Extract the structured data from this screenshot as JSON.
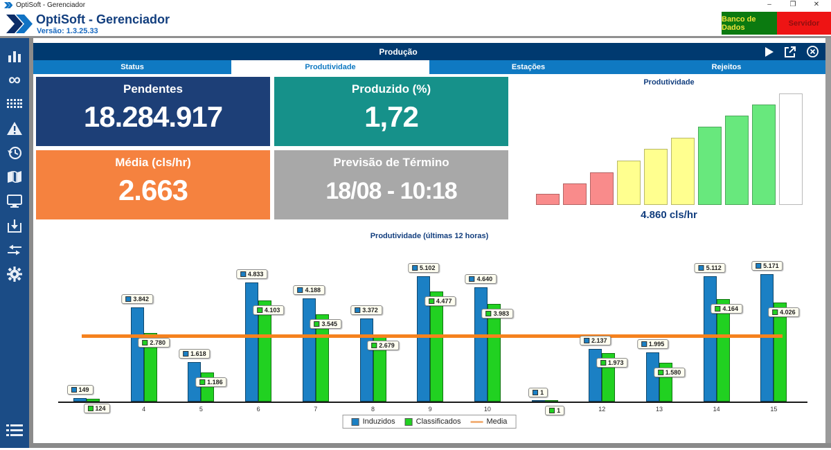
{
  "window": {
    "title": "OptiSoft - Gerenciador"
  },
  "header": {
    "brand": "OptiSoft - Gerenciador",
    "version": "Versão: 1.3.25.33",
    "db_button": "Banco de Dados",
    "server_button": "Servidor",
    "db_button_bg": "#0b7a10",
    "server_button_bg": "#ee1414"
  },
  "sidebar": {
    "icons": [
      "bar-chart",
      "infinity",
      "grid",
      "warning",
      "history",
      "map-book",
      "monitor",
      "inbox-download",
      "merge-arrows",
      "settings-gear",
      "menu-list"
    ]
  },
  "panel": {
    "title": "Produção",
    "icons": [
      "play",
      "open-external",
      "close-circle"
    ],
    "tabs": [
      {
        "label": "Status",
        "active": false
      },
      {
        "label": "Produtividade",
        "active": true
      },
      {
        "label": "Estações",
        "active": false
      },
      {
        "label": "Rejeitos",
        "active": false
      }
    ]
  },
  "kpis": [
    {
      "title": "Pendentes",
      "value": "18.284.917",
      "bg": "#1d3f77"
    },
    {
      "title": "Produzido (%)",
      "value": "1,72",
      "bg": "#16918a"
    },
    {
      "title": "Média (cls/hr)",
      "value": "2.663",
      "bg": "#f5823f"
    },
    {
      "title": "Previsão de Término",
      "value": "18/08 - 10:18",
      "bg": "#a8a8a8"
    }
  ],
  "chart_data": [
    {
      "id": "productivity-gauge",
      "type": "bar",
      "title": "Produtividade",
      "caption": "4.860 cls/hr",
      "values_pct": [
        10,
        19,
        29,
        40,
        50,
        60,
        70,
        80,
        90,
        100
      ],
      "colors": [
        "#f98b8b",
        "#f98b8b",
        "#f98b8b",
        "#ffff8f",
        "#ffff8f",
        "#ffff8f",
        "#68e87d",
        "#68e87d",
        "#68e87d",
        "#ffffff"
      ],
      "note": "staircase gauge: 3 red, 3 yellow, 3 green, 1 white bar"
    },
    {
      "id": "hourly-productivity",
      "type": "bar+line",
      "title": "Produtividade (últimas 12 horas)",
      "x": [
        3,
        4,
        5,
        6,
        7,
        8,
        9,
        10,
        11,
        12,
        13,
        14,
        15
      ],
      "tick_labels": [
        "",
        "4",
        "5",
        "6",
        "7",
        "8",
        "9",
        "10",
        "",
        "12",
        "13",
        "14",
        "15"
      ],
      "series": [
        {
          "name": "Induzidos",
          "color": "#1b80c4",
          "values": [
            149,
            3842,
            1618,
            4833,
            4188,
            3372,
            5102,
            4640,
            1,
            2137,
            1995,
            5112,
            5171
          ],
          "labels": [
            "149",
            "3.842",
            "1.618",
            "4.833",
            "4.188",
            "3.372",
            "5.102",
            "4.640",
            "1",
            "2.137",
            "1.995",
            "5.112",
            "5.171"
          ]
        },
        {
          "name": "Classificados",
          "color": "#21d121",
          "values": [
            124,
            2780,
            1186,
            4103,
            3545,
            2679,
            4477,
            3983,
            1,
            1973,
            1580,
            4164,
            4026
          ],
          "labels": [
            "124",
            "2.780",
            "1.186",
            "4.103",
            "3.545",
            "2.679",
            "4.477",
            "3.983",
            "1",
            "1.973",
            "1.580",
            "4.164",
            "4.026"
          ]
        }
      ],
      "mean": {
        "name": "Media",
        "value": 2663,
        "color": "#f5821e"
      },
      "legend_position": "bottom-center",
      "ylim": [
        0,
        5500
      ]
    }
  ],
  "legend": {
    "induzidos": "Induzidos",
    "classificados": "Classificados",
    "media": "Media"
  }
}
